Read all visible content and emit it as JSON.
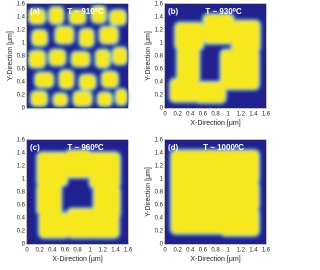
{
  "chart_data": [
    {
      "type": "image",
      "annotation": "(a)",
      "title": "T ~ 910⁰C",
      "ylabel": "Y-Direction [μm]",
      "ylim": [
        0,
        1.6
      ],
      "yticks": [
        0,
        0.2,
        0.4,
        0.6,
        0.8,
        1,
        1.2,
        1.4,
        1.6
      ]
    },
    {
      "type": "image",
      "annotation": "(b)",
      "title": "T ~ 930⁰C",
      "xlabel": "X-Direction [μm]",
      "ylabel": "Y-Direction [μm]",
      "xlim": [
        0,
        1.6
      ],
      "xticks": [
        0,
        0.2,
        0.4,
        0.6,
        0.8,
        1,
        1.2,
        1.4,
        1.6
      ],
      "ylim": [
        0,
        1.6
      ],
      "yticks": [
        0,
        0.2,
        0.4,
        0.6,
        0.8,
        1,
        1.2,
        1.4,
        1.6
      ]
    },
    {
      "type": "image",
      "annotation": "(c)",
      "title": "T ~ 960⁰C",
      "xlabel": "X-Direction [μm]",
      "xlim": [
        0,
        1.6
      ],
      "xticks": [
        0,
        0.2,
        0.4,
        0.6,
        0.8,
        1,
        1.2,
        1.4,
        1.6
      ],
      "ylim": [
        0,
        1.6
      ],
      "yticks": [
        0,
        0.2,
        0.4,
        0.6,
        0.8,
        1,
        1.2,
        1.4,
        1.6
      ]
    },
    {
      "type": "image",
      "annotation": "(d)",
      "title": "T ~ 1000⁰C",
      "xlabel": "X-Direction [μm]",
      "ylabel": "Y-Direction [μm]",
      "xlim": [
        0,
        1.6
      ],
      "xticks": [
        0,
        0.2,
        0.4,
        0.6,
        0.8,
        1,
        1.2,
        1.4,
        1.6
      ],
      "ylim": [
        0,
        1.6
      ],
      "yticks": [
        0,
        0.2,
        0.4,
        0.6,
        0.8,
        1,
        1.2,
        1.4,
        1.6
      ]
    }
  ]
}
